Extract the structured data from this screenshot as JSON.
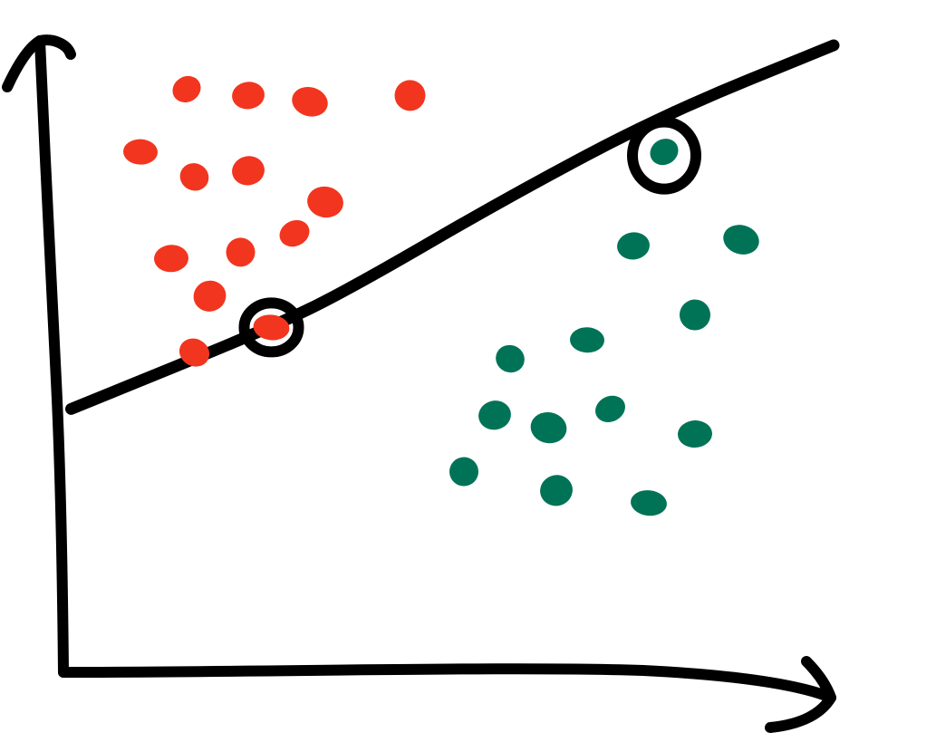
{
  "colors": {
    "background": "#ffffff",
    "stroke": "#000000",
    "class_a": "#f2351f",
    "class_b": "#007357"
  },
  "chart_data": {
    "type": "scatter",
    "title": "",
    "xlabel": "",
    "ylabel": "",
    "xlim": [
      0,
      100
    ],
    "ylim": [
      0,
      100
    ],
    "grid": false,
    "series": [
      {
        "color": "#f2351f",
        "points": [
          {
            "x": 16,
            "y": 93
          },
          {
            "x": 24,
            "y": 92
          },
          {
            "x": 32,
            "y": 91
          },
          {
            "x": 45,
            "y": 92
          },
          {
            "x": 10,
            "y": 83
          },
          {
            "x": 17,
            "y": 79
          },
          {
            "x": 24,
            "y": 80
          },
          {
            "x": 34,
            "y": 75
          },
          {
            "x": 30,
            "y": 70
          },
          {
            "x": 14,
            "y": 66
          },
          {
            "x": 23,
            "y": 67
          },
          {
            "x": 19,
            "y": 60
          },
          {
            "x": 27,
            "y": 55
          },
          {
            "x": 17,
            "y": 51
          }
        ]
      },
      {
        "color": "#007357",
        "points": [
          {
            "x": 78,
            "y": 83
          },
          {
            "x": 74,
            "y": 68
          },
          {
            "x": 88,
            "y": 69
          },
          {
            "x": 82,
            "y": 57
          },
          {
            "x": 68,
            "y": 53
          },
          {
            "x": 58,
            "y": 50
          },
          {
            "x": 56,
            "y": 41
          },
          {
            "x": 63,
            "y": 39
          },
          {
            "x": 71,
            "y": 42
          },
          {
            "x": 82,
            "y": 38
          },
          {
            "x": 52,
            "y": 32
          },
          {
            "x": 64,
            "y": 29
          },
          {
            "x": 76,
            "y": 27
          }
        ]
      }
    ],
    "decision_boundary": [
      {
        "x": 1,
        "y": 42
      },
      {
        "x": 27,
        "y": 55
      },
      {
        "x": 37,
        "y": 61
      },
      {
        "x": 58,
        "y": 76
      },
      {
        "x": 78,
        "y": 89
      },
      {
        "x": 100,
        "y": 100
      }
    ],
    "highlighted_points": [
      {
        "x": 27,
        "y": 55
      },
      {
        "x": 78,
        "y": 83
      }
    ]
  }
}
